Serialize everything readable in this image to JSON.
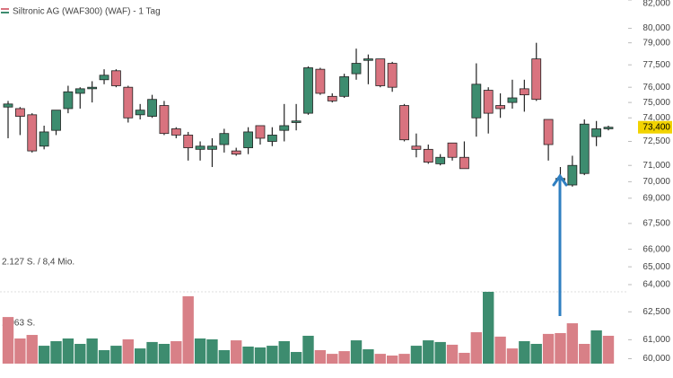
{
  "chart_data": {
    "type": "candlestick",
    "title": "Siltronic AG (WAF300) (WAF) - 1 Tag",
    "ylim": [
      59000,
      82000
    ],
    "log_scale": true,
    "yticks": [
      {
        "value": 60000,
        "label": "60,000"
      },
      {
        "value": 61000,
        "label": "61,000"
      },
      {
        "value": 62500,
        "label": "62,500"
      },
      {
        "value": 64000,
        "label": "64,000"
      },
      {
        "value": 65000,
        "label": "65,000"
      },
      {
        "value": 66000,
        "label": "66,000"
      },
      {
        "value": 67500,
        "label": "67,500"
      },
      {
        "value": 69000,
        "label": "69,000"
      },
      {
        "value": 70000,
        "label": "70,000"
      },
      {
        "value": 71000,
        "label": "71,000"
      },
      {
        "value": 72500,
        "label": "72,500"
      },
      {
        "value": 74000,
        "label": "74,000"
      },
      {
        "value": 75000,
        "label": "75,000"
      },
      {
        "value": 76000,
        "label": "76,000"
      },
      {
        "value": 77500,
        "label": "77,500"
      },
      {
        "value": 79000,
        "label": "79,000"
      },
      {
        "value": 80000,
        "label": "80,000"
      },
      {
        "value": 82000,
        "label": "82,000"
      }
    ],
    "up_color": "#3d8c6f",
    "down_color": "#d9737f",
    "last_price": {
      "value": 73400,
      "label": "73,400"
    },
    "last_price_color": "#f2d300",
    "open": [
      74700,
      74600,
      74200,
      72200,
      73200,
      74600,
      75600,
      75900,
      76500,
      77100,
      76000,
      74200,
      74100,
      74800,
      73300,
      72900,
      72000,
      72000,
      72300,
      71900,
      72100,
      73500,
      72500,
      73200,
      73700,
      74300,
      77200,
      75400,
      75400,
      76900,
      77800,
      77900,
      77600,
      74800,
      72200,
      72000,
      71100,
      72400,
      71500,
      74000,
      75800,
      74800,
      75000,
      75900,
      77900,
      73900,
      70100,
      69800,
      70500,
      72800,
      73300
    ],
    "high": [
      75100,
      74700,
      74300,
      73500,
      74500,
      76100,
      76000,
      76400,
      77200,
      77200,
      76100,
      74900,
      75500,
      75100,
      73400,
      73100,
      72500,
      72700,
      73300,
      72100,
      73400,
      73500,
      73400,
      74900,
      74900,
      77400,
      77300,
      75600,
      76900,
      78600,
      78200,
      77900,
      77700,
      74900,
      73000,
      72300,
      71700,
      72400,
      72500,
      77600,
      76000,
      75600,
      76500,
      76500,
      79000,
      73900,
      70900,
      71600,
      73900,
      73800,
      73500
    ],
    "low": [
      72700,
      72900,
      71800,
      72000,
      72900,
      74300,
      74600,
      75000,
      76200,
      76000,
      73700,
      73900,
      74000,
      72900,
      72700,
      71300,
      71300,
      70900,
      71800,
      71600,
      71700,
      72300,
      72200,
      72500,
      73200,
      74200,
      75500,
      75000,
      75300,
      76500,
      76200,
      76000,
      75700,
      72500,
      71500,
      71100,
      71000,
      71300,
      70800,
      72800,
      73000,
      74000,
      74600,
      74400,
      75100,
      71300,
      69200,
      69700,
      70400,
      72200,
      73200
    ],
    "close": [
      74900,
      74100,
      71900,
      73100,
      74500,
      75700,
      75900,
      76000,
      76800,
      76100,
      74000,
      74500,
      75200,
      73000,
      72900,
      72100,
      72200,
      72200,
      73000,
      71700,
      73100,
      72700,
      72900,
      73500,
      73800,
      77300,
      75600,
      75100,
      76700,
      77600,
      77900,
      76100,
      76000,
      72600,
      72000,
      71200,
      71500,
      71500,
      70800,
      76200,
      74300,
      74600,
      75300,
      75500,
      75200,
      72300,
      70200,
      71000,
      73600,
      73300,
      73400
    ],
    "volume_labels": [
      "2.127 S. / 8,4 Mio.",
      "1.063 S."
    ],
    "volume_ylim": [
      0,
      2127
    ],
    "volume": [
      1380,
      745,
      850,
      530,
      665,
      745,
      585,
      745,
      400,
      530,
      720,
      450,
      640,
      585,
      665,
      1995,
      745,
      720,
      400,
      690,
      505,
      480,
      530,
      665,
      345,
      825,
      400,
      290,
      370,
      690,
      425,
      290,
      240,
      290,
      530,
      690,
      640,
      560,
      320,
      930,
      2127,
      800,
      450,
      665,
      585,
      880,
      905,
      1195,
      585,
      985,
      825
    ],
    "volume_up": [
      false,
      false,
      false,
      true,
      true,
      true,
      true,
      true,
      true,
      true,
      false,
      true,
      true,
      true,
      false,
      false,
      true,
      true,
      true,
      false,
      true,
      true,
      true,
      true,
      true,
      true,
      false,
      false,
      false,
      true,
      true,
      false,
      false,
      false,
      true,
      true,
      true,
      false,
      false,
      false,
      true,
      false,
      false,
      true,
      true,
      false,
      false,
      false,
      false,
      true,
      false
    ],
    "volume_up_color": "#3d8c6f",
    "volume_down_color": "#d88087"
  }
}
